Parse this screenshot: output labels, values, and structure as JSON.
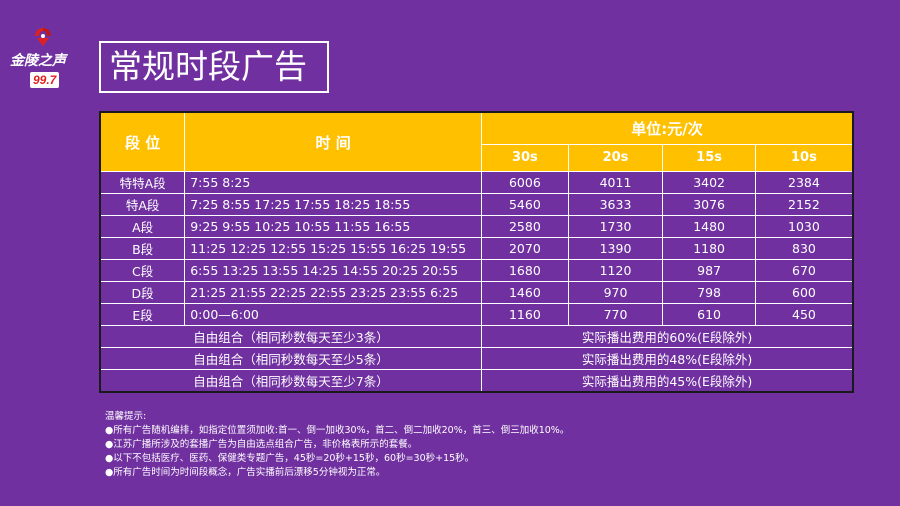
{
  "logo": {
    "name": "金陵之声",
    "frequency": "99.7",
    "icon": "radio-emblem-icon"
  },
  "title": "常规时段广告",
  "table": {
    "header": {
      "segment": "段 位",
      "time": "时 间",
      "unit": "单位:元/次",
      "durations": [
        "30s",
        "20s",
        "15s",
        "10s"
      ]
    },
    "rows": [
      {
        "segment": "特特A段",
        "time": "7:55  8:25",
        "prices": [
          "6006",
          "4011",
          "3402",
          "2384"
        ]
      },
      {
        "segment": "特A段",
        "time": "7:25  8:55  17:25  17:55  18:25   18:55",
        "prices": [
          "5460",
          "3633",
          "3076",
          "2152"
        ]
      },
      {
        "segment": "A段",
        "time": "9:25  9:55  10:25   10:55  11:55  16:55",
        "prices": [
          "2580",
          "1730",
          "1480",
          "1030"
        ]
      },
      {
        "segment": "B段",
        "time": "11:25 12:25  12:55  15:25  15:55  16:25   19:55",
        "prices": [
          "2070",
          "1390",
          "1180",
          "830"
        ]
      },
      {
        "segment": "C段",
        "time": "6:55  13:25  13:55  14:25  14:55  20:25  20:55",
        "prices": [
          "1680",
          "1120",
          "987",
          "670"
        ]
      },
      {
        "segment": "D段",
        "time": "21:25  21:55  22:25  22:55  23:25  23:55  6:25",
        "prices": [
          "1460",
          "970",
          "798",
          "600"
        ]
      },
      {
        "segment": "E段",
        "time": "0:00—6:00",
        "prices": [
          "1160",
          "770",
          "610",
          "450"
        ]
      }
    ],
    "combos": [
      {
        "label": "自由组合（相同秒数每天至少3条）",
        "rate": "实际播出费用的60%(E段除外)"
      },
      {
        "label": "自由组合（相同秒数每天至少5条）",
        "rate": "实际播出费用的48%(E段除外)"
      },
      {
        "label": "自由组合（相同秒数每天至少7条）",
        "rate": "实际播出费用的45%(E段除外)"
      }
    ]
  },
  "notes": {
    "heading": "温馨提示:",
    "items": [
      "●所有广告随机编排，如指定位置须加收:首一、倒一加收30%，首二、倒二加收20%，首三、倒三加收10%。",
      "●江苏广播所涉及的套播广告为自由选点组合广告，非价格表所示的套餐。",
      "●以下不包括医疗、医药、保健类专题广告，45秒=20秒+15秒，60秒=30秒+15秒。",
      "●所有广告时间为时间段概念，广告实播前后漂移5分钟视为正常。"
    ]
  },
  "colors": {
    "background": "#7030a0",
    "header": "#ffc000",
    "text": "#ffffff",
    "logo_red": "#e02020"
  }
}
